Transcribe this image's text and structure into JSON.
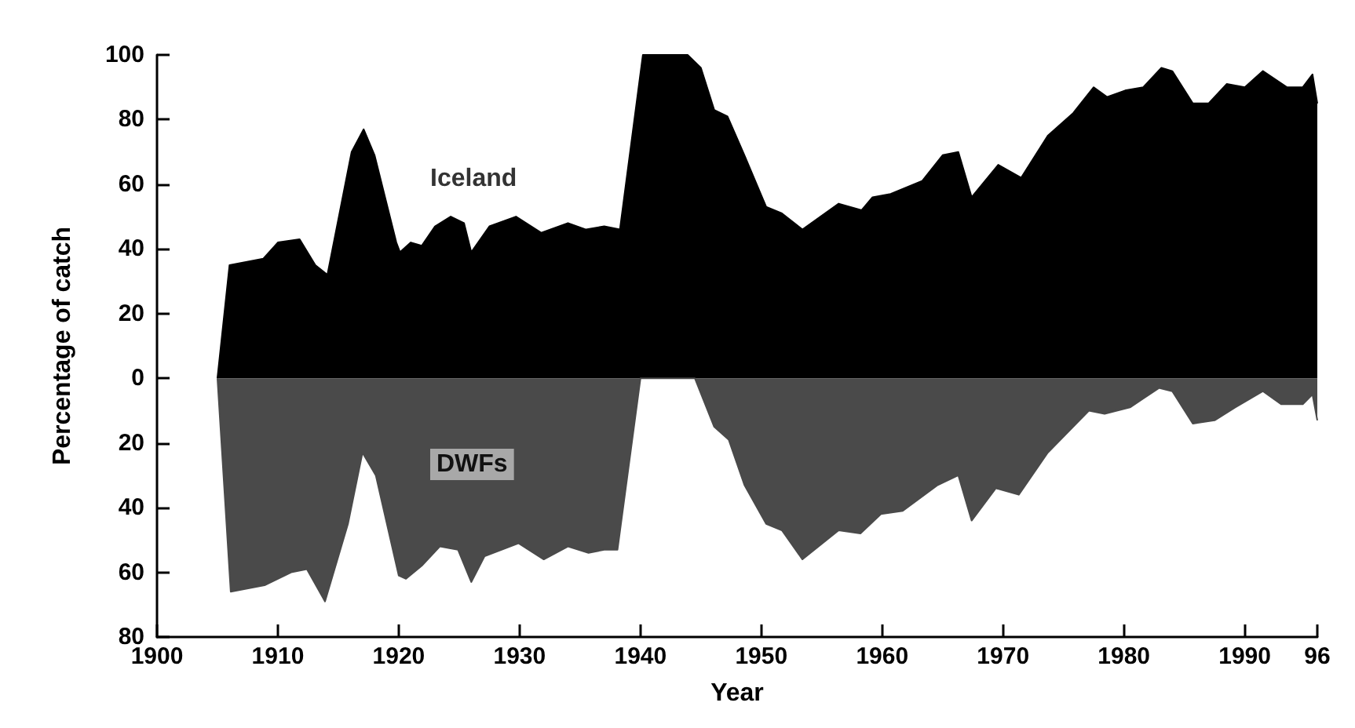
{
  "chart_data": {
    "type": "area",
    "xlabel": "Year",
    "ylabel": "Percentage of catch",
    "xlim": [
      1900,
      1996
    ],
    "xticks": [
      1900,
      1910,
      1920,
      1930,
      1940,
      1950,
      1960,
      1970,
      1980,
      1990,
      {
        "value": 1996,
        "label": "96"
      }
    ],
    "ylim": [
      -80,
      100
    ],
    "yticks": [
      {
        "value": -80,
        "label": "80"
      },
      {
        "value": -60,
        "label": "60"
      },
      {
        "value": -40,
        "label": "40"
      },
      {
        "value": -20,
        "label": "20"
      },
      0,
      20,
      40,
      60,
      80,
      100
    ],
    "grid": false,
    "annotations": [
      "Iceland",
      "DWFs"
    ],
    "series": [
      {
        "color": "#000000",
        "x": [
          1905,
          1906,
          1908.8,
          1910,
          1911.8,
          1913.1,
          1914.1,
          1916.1,
          1917.1,
          1918,
          1919.8,
          1920.1,
          1921,
          1921.9,
          1923,
          1924.3,
          1925.4,
          1926,
          1927.5,
          1929.7,
          1931.8,
          1934,
          1935.5,
          1937,
          1938.3,
          1940.2,
          1943.9,
          1945,
          1946.1,
          1947.2,
          1948.6,
          1950.4,
          1951.7,
          1953.4,
          1956.4,
          1958.3,
          1959.2,
          1960.7,
          1963.3,
          1965,
          1966.3,
          1967.4,
          1969.6,
          1971.5,
          1973.7,
          1975.8,
          1977.5,
          1978.6,
          1980.1,
          1981.6,
          1983.1,
          1984,
          1985.7,
          1987,
          1988.5,
          1990,
          1991.5,
          1993.5,
          1994.8,
          1995.6,
          1996
        ],
        "values": [
          0,
          35,
          37,
          42,
          43,
          35,
          32,
          70,
          77,
          69,
          42,
          39,
          42,
          41,
          47,
          50,
          48,
          39,
          47,
          50,
          45,
          48,
          46,
          47,
          46,
          100,
          100,
          96,
          83,
          81,
          69,
          53,
          51,
          46,
          54,
          52,
          56,
          57,
          61,
          69,
          70,
          56,
          66,
          62,
          75,
          82,
          90,
          87,
          89,
          90,
          96,
          95,
          85,
          85,
          91,
          90,
          95,
          90,
          90,
          94,
          85
        ]
      },
      {
        "color": "#4a4a4a",
        "x": [
          1905,
          1906.1,
          1908.9,
          1911.1,
          1912.4,
          1913.9,
          1915.8,
          1917,
          1918.1,
          1920,
          1920.6,
          1921.9,
          1923.4,
          1924.9,
          1926,
          1927.1,
          1929.9,
          1932,
          1934,
          1935.7,
          1937,
          1938.1,
          1940,
          1944.5,
          1946.1,
          1947.3,
          1948.6,
          1950.4,
          1951.7,
          1953.4,
          1956.4,
          1958.2,
          1959.9,
          1961.7,
          1964.6,
          1966.3,
          1967.4,
          1969.4,
          1971.3,
          1973.7,
          1977.1,
          1978.4,
          1980.5,
          1982.9,
          1984,
          1985.7,
          1987.5,
          1989.2,
          1991.5,
          1993,
          1994.8,
          1995.6,
          1996
        ],
        "values": [
          0,
          -66,
          -64,
          -60,
          -59,
          -69,
          -45,
          -23,
          -30,
          -61,
          -62,
          -58,
          -52,
          -53,
          -63,
          -55,
          -51,
          -56,
          -52,
          -54,
          -53,
          -53,
          0,
          0,
          -15,
          -19,
          -33,
          -45,
          -47,
          -56,
          -47,
          -48,
          -42,
          -41,
          -33,
          -30,
          -44,
          -34,
          -36,
          -23,
          -10,
          -11,
          -9,
          -3,
          -4,
          -14,
          -13,
          -9,
          -4,
          -8,
          -8,
          -5,
          -13
        ]
      }
    ]
  }
}
